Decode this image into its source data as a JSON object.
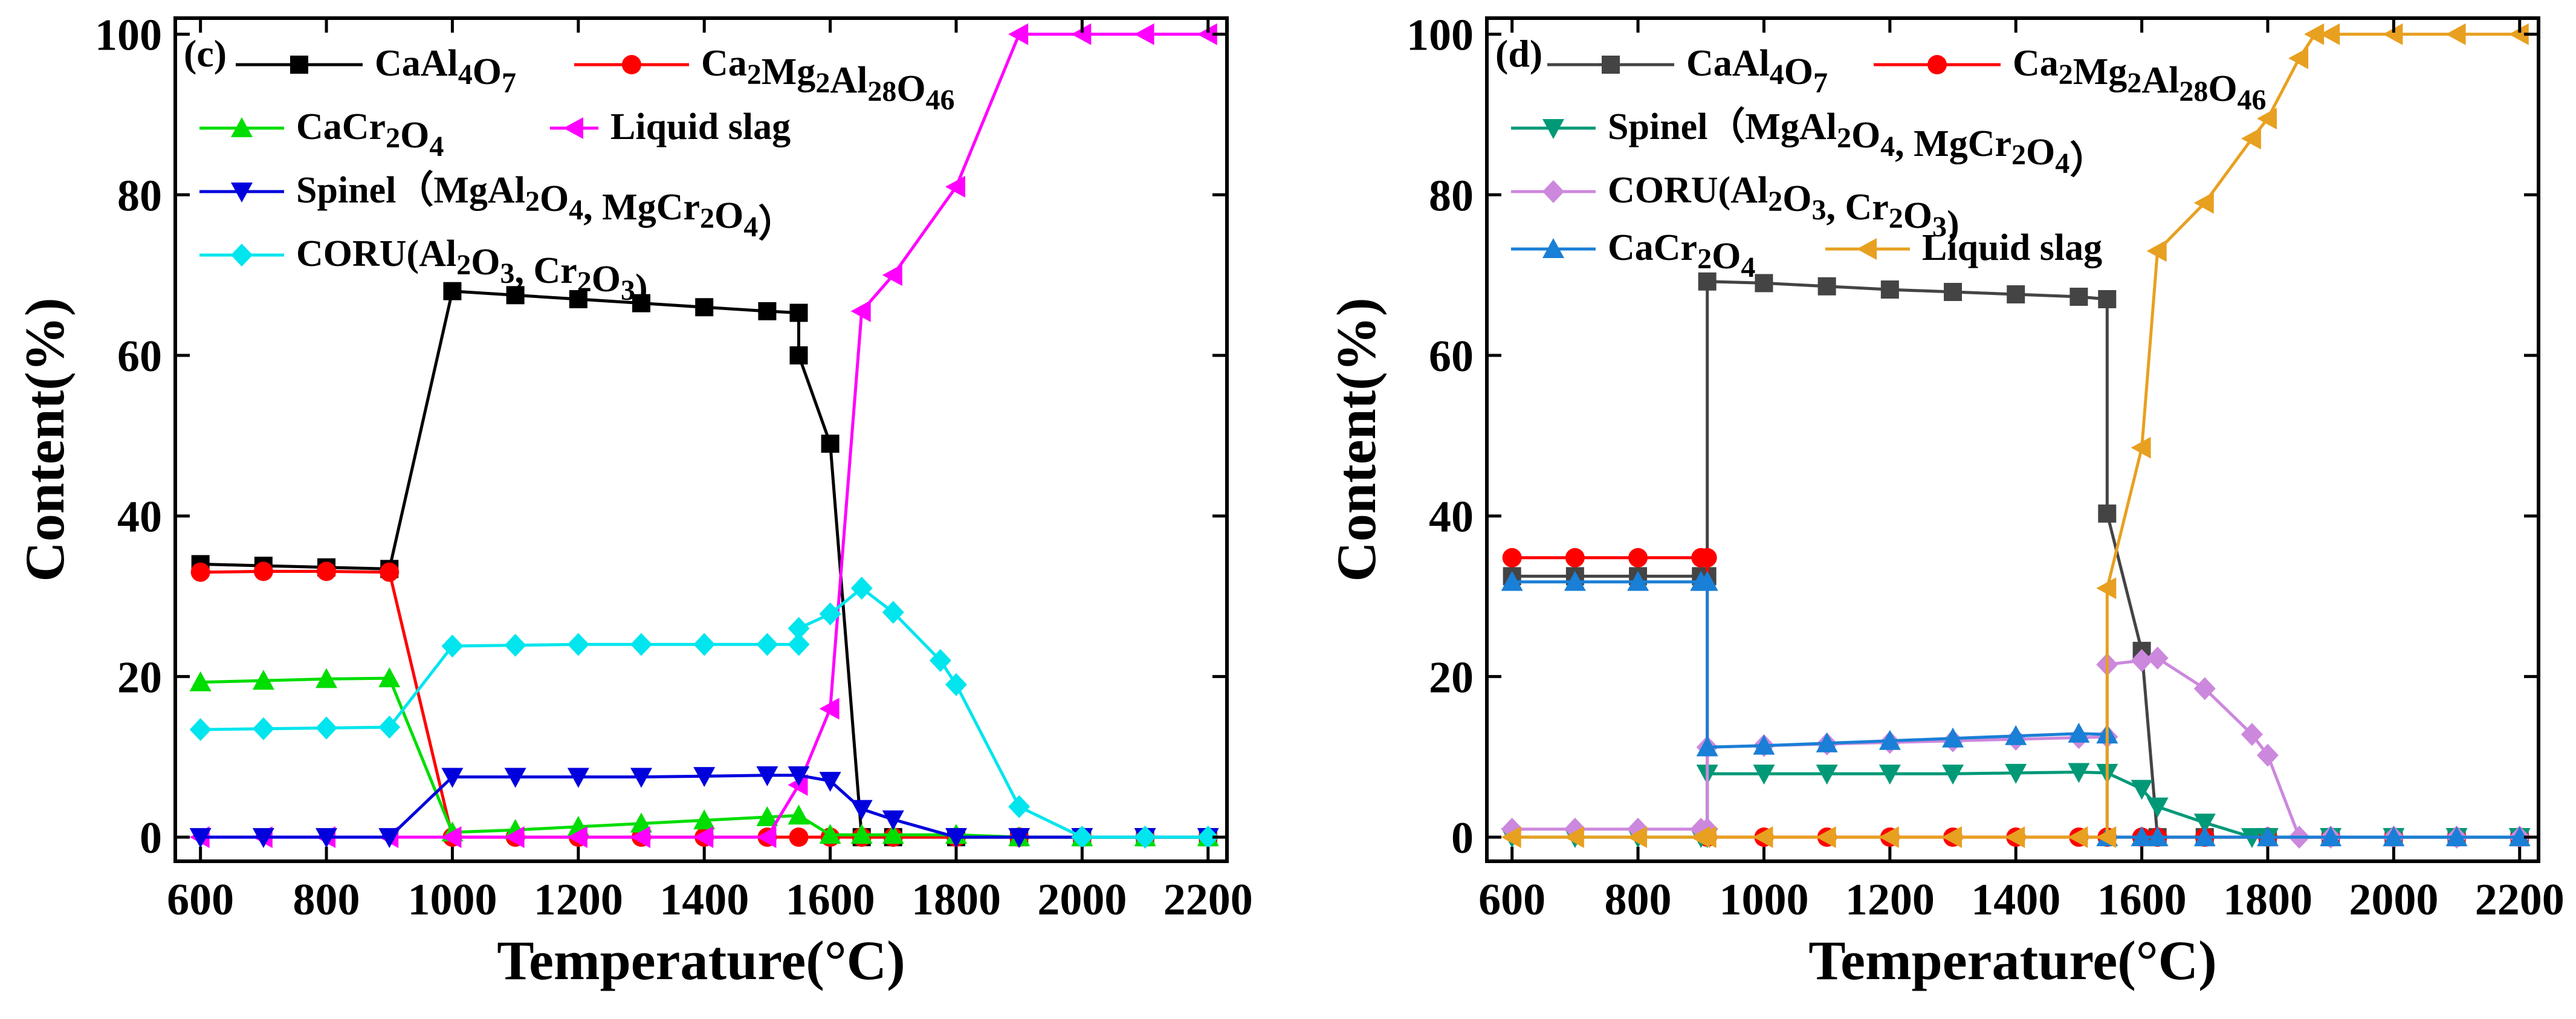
{
  "chart_data": [
    {
      "type": "line",
      "panel_label": "(c)",
      "xlabel": "Temperature(°C)",
      "ylabel": "Content(%)",
      "xlim": [
        560,
        2230
      ],
      "ylim": [
        -3,
        102
      ],
      "xticks": [
        600,
        800,
        1000,
        1200,
        1400,
        1600,
        1800,
        2000,
        2200
      ],
      "xtick_labels": [
        "600",
        "800",
        "1000",
        "1200",
        "1400",
        "1600",
        "1800",
        "2000",
        "2200"
      ],
      "yticks": [
        0,
        20,
        40,
        60,
        80,
        100
      ],
      "ytick_labels": [
        "0",
        "20",
        "40",
        "60",
        "80",
        "100"
      ],
      "legend_location": "upper-left",
      "series": [
        {
          "name": "CaAl4O7",
          "label_parts": [
            [
              "CaAl",
              ""
            ],
            [
              "4",
              "sub"
            ],
            [
              "O",
              ""
            ],
            [
              "7",
              "sub"
            ]
          ],
          "color": "#000000",
          "marker": "square",
          "x": [
            600,
            700,
            800,
            900,
            1000,
            1100,
            1200,
            1300,
            1400,
            1500,
            1550,
            1550,
            1600,
            1650,
            1700,
            1800,
            1900,
            2000,
            2100,
            2200
          ],
          "y": [
            34,
            33.8,
            33.6,
            33.4,
            68,
            67.5,
            67,
            66.5,
            66,
            65.5,
            65.3,
            60,
            49,
            0,
            0,
            0,
            0,
            0,
            0,
            0
          ]
        },
        {
          "name": "Ca2Mg2Al28O46",
          "label_parts": [
            [
              "Ca",
              ""
            ],
            [
              "2",
              "sub"
            ],
            [
              "Mg",
              ""
            ],
            [
              "2",
              "sub"
            ],
            [
              "Al",
              ""
            ],
            [
              "28",
              "sub"
            ],
            [
              "O",
              ""
            ],
            [
              "46",
              "sub"
            ]
          ],
          "color": "#ff0000",
          "marker": "circle",
          "x": [
            600,
            700,
            800,
            900,
            1000,
            1100,
            1200,
            1300,
            1400,
            1500,
            1550,
            1600,
            1650,
            1700,
            1800,
            1900,
            2000,
            2100,
            2200
          ],
          "y": [
            33,
            33.1,
            33.1,
            33,
            0,
            0,
            0,
            0,
            0,
            0,
            0,
            0,
            0,
            0,
            0,
            0,
            0,
            0,
            0
          ]
        },
        {
          "name": "CaCr2O4",
          "label_parts": [
            [
              "CaCr",
              ""
            ],
            [
              "2",
              "sub"
            ],
            [
              "O",
              ""
            ],
            [
              "4",
              "sub"
            ]
          ],
          "color": "#00dd00",
          "marker": "triangle-up",
          "x": [
            600,
            700,
            800,
            900,
            1000,
            1100,
            1200,
            1300,
            1400,
            1500,
            1550,
            1600,
            1650,
            1700,
            1800,
            1900,
            2000,
            2100,
            2200
          ],
          "y": [
            19.3,
            19.5,
            19.7,
            19.8,
            0.6,
            0.9,
            1.3,
            1.7,
            2.1,
            2.5,
            2.7,
            0.3,
            0.3,
            0.3,
            0.3,
            0,
            0,
            0,
            0
          ]
        },
        {
          "name": "Liquid slag",
          "label_parts": [
            [
              "Liquid slag",
              ""
            ]
          ],
          "color": "#ff00ff",
          "marker": "triangle-left",
          "x": [
            600,
            700,
            800,
            900,
            1000,
            1100,
            1200,
            1300,
            1400,
            1500,
            1550,
            1600,
            1650,
            1700,
            1800,
            1900,
            2000,
            2100,
            2200
          ],
          "y": [
            0,
            0,
            0,
            0,
            0,
            0,
            0,
            0,
            0,
            0,
            6.5,
            16,
            65.5,
            70,
            81,
            100,
            100,
            100,
            100
          ]
        },
        {
          "name": "Spinel（MgAl2O4, MgCr2O4）",
          "label_parts": [
            [
              "Spinel（MgAl",
              ""
            ],
            [
              "2",
              "sub"
            ],
            [
              "O",
              ""
            ],
            [
              "4",
              "sub"
            ],
            [
              ", MgCr",
              ""
            ],
            [
              "2",
              "sub"
            ],
            [
              "O",
              ""
            ],
            [
              "4",
              "sub"
            ],
            [
              "）",
              ""
            ]
          ],
          "color": "#0000dd",
          "marker": "triangle-down",
          "x": [
            600,
            700,
            800,
            900,
            1000,
            1100,
            1200,
            1300,
            1400,
            1500,
            1550,
            1600,
            1650,
            1700,
            1800,
            1900,
            2000,
            2100,
            2200
          ],
          "y": [
            0,
            0,
            0,
            0,
            7.5,
            7.5,
            7.5,
            7.5,
            7.6,
            7.7,
            7.7,
            7,
            3.5,
            2.2,
            0,
            0,
            0,
            0,
            0
          ]
        },
        {
          "name": "CORU(Al2O3, Cr2O3)",
          "label_parts": [
            [
              "CORU(Al",
              ""
            ],
            [
              "2",
              "sub"
            ],
            [
              "O",
              ""
            ],
            [
              "3",
              "sub"
            ],
            [
              ", Cr",
              ""
            ],
            [
              "2",
              "sub"
            ],
            [
              "O",
              ""
            ],
            [
              "3",
              "sub"
            ],
            [
              ")",
              ""
            ]
          ],
          "color": "#00e5ee",
          "marker": "diamond",
          "x": [
            600,
            700,
            800,
            900,
            1000,
            1100,
            1200,
            1300,
            1400,
            1500,
            1550,
            1550,
            1600,
            1650,
            1700,
            1775,
            1800,
            1900,
            2000,
            2100,
            2200
          ],
          "y": [
            13.4,
            13.5,
            13.6,
            13.7,
            23.8,
            23.9,
            24,
            24,
            24,
            24,
            24,
            26,
            27.8,
            31,
            28,
            22,
            19,
            3.8,
            0,
            0,
            0
          ]
        }
      ]
    },
    {
      "type": "line",
      "panel_label": "(d)",
      "xlabel": "Temperature(°C)",
      "ylabel": "Content(%)",
      "xlim": [
        560,
        2230
      ],
      "ylim": [
        -3,
        102
      ],
      "xticks": [
        600,
        800,
        1000,
        1200,
        1400,
        1600,
        1800,
        2000,
        2200
      ],
      "xtick_labels": [
        "600",
        "800",
        "1000",
        "1200",
        "1400",
        "1600",
        "1800",
        "2000",
        "2200"
      ],
      "yticks": [
        0,
        20,
        40,
        60,
        80,
        100
      ],
      "ytick_labels": [
        "0",
        "20",
        "40",
        "60",
        "80",
        "100"
      ],
      "legend_location": "upper-left",
      "series": [
        {
          "name": "CaAl4O7",
          "label_parts": [
            [
              "CaAl",
              ""
            ],
            [
              "4",
              "sub"
            ],
            [
              "O",
              ""
            ],
            [
              "7",
              "sub"
            ]
          ],
          "color": "#444444",
          "marker": "square",
          "x": [
            600,
            700,
            800,
            900,
            910,
            910,
            1000,
            1100,
            1200,
            1300,
            1400,
            1500,
            1545,
            1545,
            1600,
            1625,
            1700,
            1800,
            1900,
            2000,
            2100,
            2200
          ],
          "y": [
            32.5,
            32.5,
            32.5,
            32.5,
            32.5,
            69.2,
            69,
            68.6,
            68.2,
            67.9,
            67.6,
            67.3,
            67,
            40.3,
            23.2,
            0,
            0,
            0,
            0,
            0,
            0,
            0
          ]
        },
        {
          "name": "Ca2Mg2Al28O46",
          "label_parts": [
            [
              "Ca",
              ""
            ],
            [
              "2",
              "sub"
            ],
            [
              "Mg",
              ""
            ],
            [
              "2",
              "sub"
            ],
            [
              "Al",
              ""
            ],
            [
              "28",
              "sub"
            ],
            [
              "O",
              ""
            ],
            [
              "46",
              "sub"
            ]
          ],
          "color": "#ff0000",
          "marker": "circle",
          "x": [
            600,
            700,
            800,
            900,
            910,
            910,
            1000,
            1100,
            1200,
            1300,
            1400,
            1500,
            1545,
            1600,
            1625,
            1700,
            1800,
            1900,
            2000,
            2100,
            2200
          ],
          "y": [
            34.8,
            34.8,
            34.8,
            34.8,
            34.8,
            0,
            0,
            0,
            0,
            0,
            0,
            0,
            0,
            0,
            0,
            0,
            0,
            0,
            0,
            0,
            0
          ]
        },
        {
          "name": "Spinel（MgAl2O4, MgCr2O4）",
          "label_parts": [
            [
              "Spinel（MgAl",
              ""
            ],
            [
              "2",
              "sub"
            ],
            [
              "O",
              ""
            ],
            [
              "4",
              "sub"
            ],
            [
              ", MgCr",
              ""
            ],
            [
              "2",
              "sub"
            ],
            [
              "O",
              ""
            ],
            [
              "4",
              "sub"
            ],
            [
              "）",
              ""
            ]
          ],
          "color": "#009977",
          "marker": "triangle-down",
          "x": [
            600,
            700,
            800,
            900,
            910,
            910,
            1000,
            1100,
            1200,
            1300,
            1400,
            1500,
            1545,
            1600,
            1625,
            1700,
            1775,
            1800,
            1900,
            2000,
            2100,
            2200
          ],
          "y": [
            0,
            0,
            0,
            0,
            0,
            7.9,
            7.9,
            7.9,
            7.9,
            7.9,
            8,
            8.1,
            8,
            6,
            3.8,
            1.8,
            0,
            0,
            0,
            0,
            0,
            0
          ]
        },
        {
          "name": "CORU(Al2O3, Cr2O3)",
          "label_parts": [
            [
              "CORU(Al",
              ""
            ],
            [
              "2",
              "sub"
            ],
            [
              "O",
              ""
            ],
            [
              "3",
              "sub"
            ],
            [
              ", Cr",
              ""
            ],
            [
              "2",
              "sub"
            ],
            [
              "O",
              ""
            ],
            [
              "3",
              "sub"
            ],
            [
              ")",
              ""
            ]
          ],
          "color": "#cc88dd",
          "marker": "diamond",
          "x": [
            600,
            700,
            800,
            900,
            910,
            910,
            1000,
            1100,
            1200,
            1300,
            1400,
            1500,
            1545,
            1545,
            1600,
            1625,
            1700,
            1775,
            1800,
            1850,
            1900,
            2000,
            2100,
            2200
          ],
          "y": [
            1,
            1,
            1,
            1,
            1,
            11.2,
            11.4,
            11.6,
            11.8,
            12,
            12.2,
            12.4,
            12.5,
            21.5,
            22,
            22.3,
            18.5,
            12.8,
            10.2,
            0,
            0,
            0,
            0,
            0
          ]
        },
        {
          "name": "CaCr2O4",
          "label_parts": [
            [
              "CaCr",
              ""
            ],
            [
              "2",
              "sub"
            ],
            [
              "O",
              ""
            ],
            [
              "4",
              "sub"
            ]
          ],
          "color": "#1a7fd6",
          "marker": "triangle-up",
          "x": [
            600,
            700,
            800,
            900,
            910,
            910,
            1000,
            1100,
            1200,
            1300,
            1400,
            1500,
            1545,
            1545,
            1600,
            1625,
            1700,
            1800,
            1900,
            2000,
            2100,
            2200
          ],
          "y": [
            31.8,
            31.8,
            31.8,
            31.8,
            31.8,
            11.2,
            11.4,
            11.7,
            12,
            12.3,
            12.6,
            12.9,
            12.8,
            0,
            0,
            0,
            0,
            0,
            0,
            0,
            0,
            0
          ]
        },
        {
          "name": "Liquid slag",
          "label_parts": [
            [
              "Liquid slag",
              ""
            ]
          ],
          "color": "#e8a020",
          "marker": "triangle-left",
          "x": [
            600,
            700,
            800,
            900,
            910,
            1000,
            1100,
            1200,
            1300,
            1400,
            1500,
            1545,
            1545,
            1600,
            1625,
            1700,
            1775,
            1800,
            1850,
            1875,
            1900,
            2000,
            2100,
            2200
          ],
          "y": [
            0,
            0,
            0,
            0,
            0,
            0,
            0,
            0,
            0,
            0,
            0,
            0,
            31,
            48.5,
            73,
            79,
            87,
            89.5,
            97,
            100,
            100,
            100,
            100,
            100
          ]
        }
      ]
    }
  ]
}
